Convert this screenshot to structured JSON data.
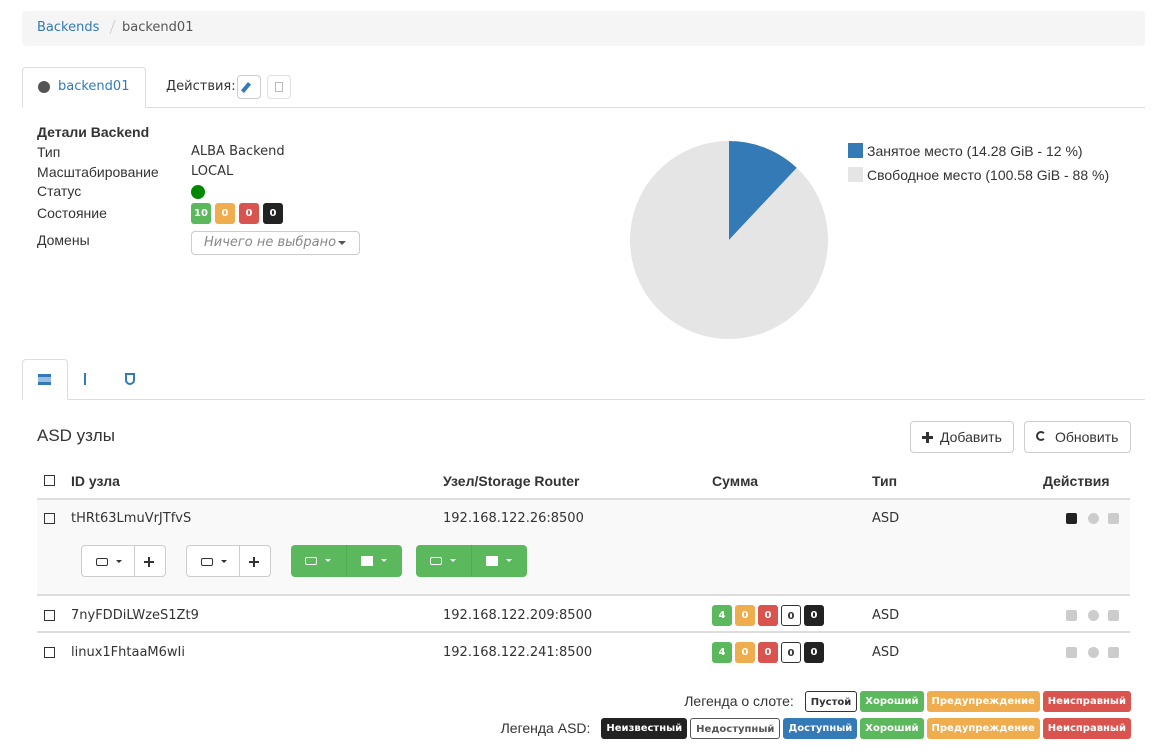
{
  "breadcrumb": [
    "Backends",
    "backend01"
  ],
  "tabs": {
    "active": "backend01",
    "actions_label": "Действия:"
  },
  "details": {
    "heading": "Детали Backend",
    "type_label": "Тип",
    "type": "ALBA Backend",
    "scaling_label": "Масштабирование",
    "scaling": "LOCAL",
    "status_label": "Статус",
    "state_label": "Состояние",
    "state_counts": [
      10,
      0,
      0,
      0
    ],
    "domains_label": "Домены",
    "domains_placeholder": "Ничего не выбрано"
  },
  "usage": {
    "slices": [
      {
        "label": "Занятое место (14.28 GiB - 12 %)",
        "value": 12,
        "color": "#337ab7"
      },
      {
        "label": "Свободное место (100.58 GiB - 88 %)",
        "value": 88,
        "color": "#e5e5e5"
      }
    ]
  },
  "asd_nodes": {
    "title": "ASD узлы",
    "add": "Добавить",
    "refresh": "Обновить",
    "columns": [
      "ID узла",
      "Узел/Storage Router",
      "Сумма",
      "Тип",
      "Действия"
    ],
    "rows": [
      {
        "id": "tHRt63LmuVrJTfvS",
        "node": "192.168.122.26:8500",
        "type": "ASD"
      },
      {
        "id": "7nyFDDiLWzeS1Zt9",
        "node": "192.168.122.209:8500",
        "counts": [
          4,
          0,
          0,
          0,
          0
        ],
        "type": "ASD"
      },
      {
        "id": "linux1FhtaaM6wIi",
        "node": "192.168.122.241:8500",
        "counts": [
          4,
          0,
          0,
          0,
          0
        ],
        "type": "ASD"
      }
    ]
  },
  "legends": {
    "slot": {
      "label": "Легенда о слоте:",
      "items": [
        "Пустой",
        "Хороший",
        "Предупреждение",
        "Неисправный"
      ]
    },
    "asd": {
      "label": "Легенда ASD:",
      "items": [
        "Неизвестный",
        "Недоступный",
        "Доступный",
        "Хороший",
        "Предупреждение",
        "Неисправный"
      ]
    }
  }
}
